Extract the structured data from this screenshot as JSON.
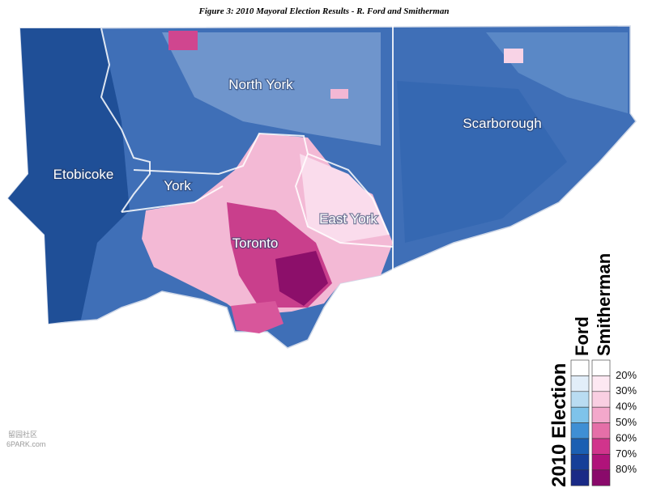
{
  "title": "Figure 3: 2010 Mayoral Election Results - R. Ford and Smitherman",
  "districts": [
    "North York",
    "Scarborough",
    "Etobicoke",
    "York",
    "East York",
    "Toronto"
  ],
  "legend": {
    "title": "2010 Election",
    "columns": [
      "Ford",
      "Smitherman"
    ],
    "labels": [
      "20%",
      "30%",
      "40%",
      "50%",
      "60%",
      "70%",
      "80%"
    ]
  },
  "watermark": [
    "留园社区",
    "6PARK.com"
  ]
}
